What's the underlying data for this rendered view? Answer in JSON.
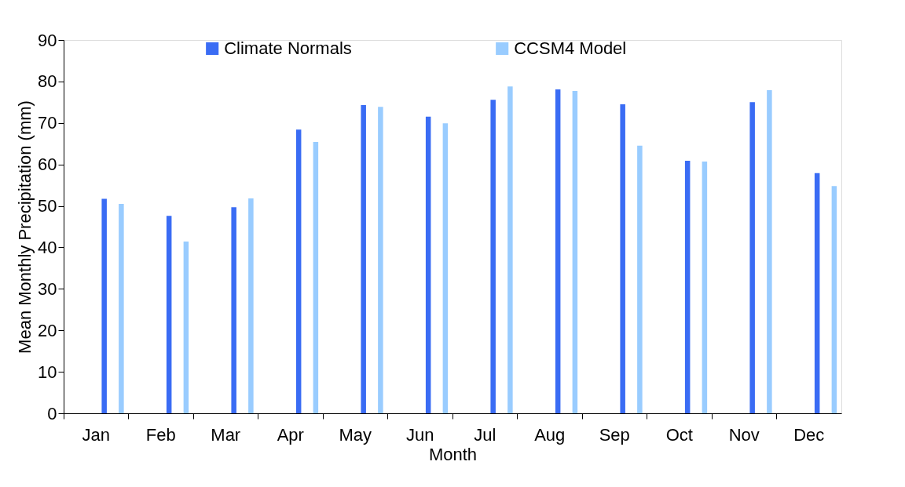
{
  "chart_data": {
    "type": "bar",
    "xlabel": "Month",
    "ylabel": "Mean Monthly Precipitation (mm)",
    "categories": [
      "Jan",
      "Feb",
      "Mar",
      "Apr",
      "May",
      "Jun",
      "Jul",
      "Aug",
      "Sep",
      "Oct",
      "Nov",
      "Dec"
    ],
    "series": [
      {
        "name": "Climate Normals",
        "color": "#3a6cf4",
        "values": [
          51.7,
          47.6,
          49.7,
          68.4,
          74.3,
          71.5,
          75.6,
          78.1,
          74.5,
          60.9,
          75.0,
          57.9
        ]
      },
      {
        "name": "CCSM4 Model",
        "color": "#99ccff",
        "values": [
          50.5,
          41.4,
          51.8,
          65.4,
          73.9,
          69.9,
          78.8,
          77.7,
          64.5,
          60.7,
          77.9,
          54.8
        ]
      }
    ],
    "ylim": [
      0,
      90
    ],
    "yticks": [
      0,
      10,
      20,
      30,
      40,
      50,
      60,
      70,
      80,
      90
    ],
    "grid": false,
    "legend": "top"
  }
}
